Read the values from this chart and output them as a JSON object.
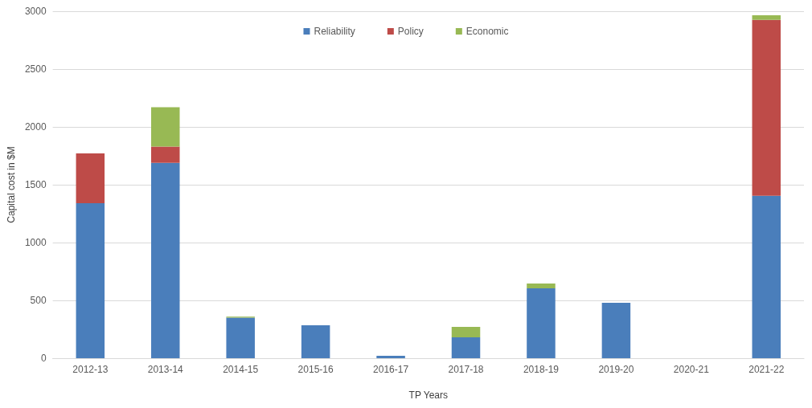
{
  "chart_data": {
    "type": "bar",
    "stacked": true,
    "xlabel": "TP Years",
    "ylabel": "Capital cost in $M",
    "categories": [
      "2012-13",
      "2013-14",
      "2014-15",
      "2015-16",
      "2016-17",
      "2017-18",
      "2018-19",
      "2019-20",
      "2020-21",
      "2021-22"
    ],
    "series": [
      {
        "name": "Reliability",
        "color": "#4a7ebb",
        "values": [
          1340,
          1690,
          350,
          285,
          20,
          180,
          605,
          480,
          0,
          1405
        ]
      },
      {
        "name": "Policy",
        "color": "#be4b48",
        "values": [
          430,
          140,
          0,
          0,
          0,
          0,
          0,
          0,
          0,
          1520
        ]
      },
      {
        "name": "Economic",
        "color": "#98b954",
        "values": [
          0,
          340,
          10,
          0,
          0,
          90,
          40,
          0,
          0,
          40
        ]
      }
    ],
    "ylim": [
      0,
      3000
    ],
    "yticks": [
      0,
      500,
      1000,
      1500,
      2000,
      2500,
      3000
    ],
    "grid": "y",
    "legend": "top"
  }
}
